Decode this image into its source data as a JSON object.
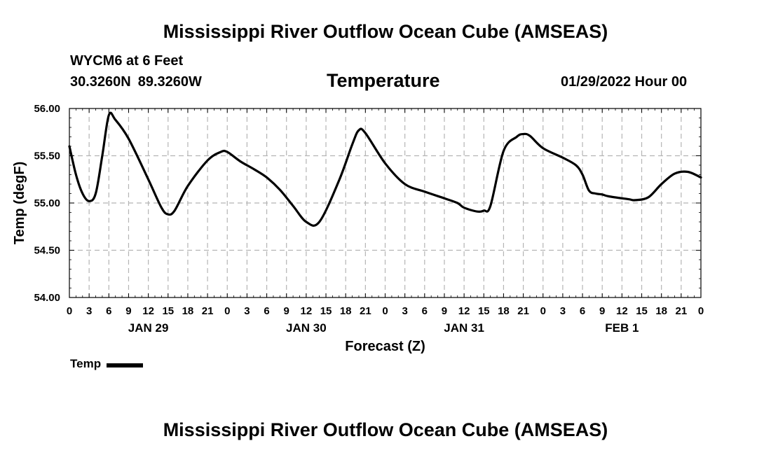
{
  "header": {
    "main_title": "Mississippi River Outflow Ocean Cube (AMSEAS)",
    "station": "WYCM6 at 6 Feet",
    "lat": "30.3260N",
    "lon": "89.3260W",
    "variable_title": "Temperature",
    "run_time": "01/29/2022 Hour 00"
  },
  "footer": {
    "title": "Mississippi River Outflow Ocean Cube (AMSEAS)"
  },
  "legend": {
    "label": "Temp"
  },
  "colors": {
    "line": "#000000",
    "grid": "#b4b4b4"
  },
  "chart_data": {
    "type": "line",
    "title": "Temperature",
    "xlabel": "Forecast (Z)",
    "ylabel": "Temp (degF)",
    "xlim": [
      0,
      96
    ],
    "ylim": [
      54.0,
      56.0
    ],
    "x_tick_step_hours": 3,
    "x_tick_labels": [
      "0",
      "3",
      "6",
      "9",
      "12",
      "15",
      "18",
      "21",
      "0",
      "3",
      "6",
      "9",
      "12",
      "15",
      "18",
      "21",
      "0",
      "3",
      "6",
      "9",
      "12",
      "15",
      "18",
      "21",
      "0",
      "3",
      "6",
      "9",
      "12",
      "15",
      "18",
      "21",
      "0"
    ],
    "y_ticks": [
      54.0,
      54.5,
      55.0,
      55.5,
      56.0
    ],
    "y_tick_labels": [
      "54.00",
      "54.50",
      "55.00",
      "55.50",
      "56.00"
    ],
    "date_labels": [
      {
        "text": "JAN 29",
        "hour": 12
      },
      {
        "text": "JAN 30",
        "hour": 36
      },
      {
        "text": "JAN 31",
        "hour": 60
      },
      {
        "text": "FEB 1",
        "hour": 84
      }
    ],
    "grid": true,
    "series": [
      {
        "name": "Temp",
        "x": [
          0,
          1,
          2,
          3,
          4,
          5,
          6,
          7,
          9,
          12,
          14,
          15,
          16,
          18,
          21,
          23,
          24,
          26,
          28,
          30,
          32,
          34,
          36,
          38,
          41,
          43,
          44,
          45,
          48,
          51,
          54,
          57,
          59,
          60,
          62,
          63,
          64,
          66,
          68,
          69,
          70,
          72,
          75,
          77,
          78,
          79,
          80,
          81,
          82,
          85,
          86,
          88,
          90,
          92,
          94,
          96
        ],
        "values": [
          55.6,
          55.3,
          55.1,
          55.02,
          55.1,
          55.5,
          55.93,
          55.88,
          55.68,
          55.25,
          54.95,
          54.88,
          54.92,
          55.18,
          55.45,
          55.54,
          55.54,
          55.44,
          55.36,
          55.27,
          55.14,
          54.97,
          54.8,
          54.8,
          55.24,
          55.62,
          55.77,
          55.74,
          55.42,
          55.2,
          55.12,
          55.05,
          55.0,
          54.95,
          54.91,
          54.92,
          54.97,
          55.55,
          55.7,
          55.73,
          55.71,
          55.58,
          55.48,
          55.4,
          55.3,
          55.13,
          55.1,
          55.09,
          55.07,
          55.04,
          55.03,
          55.06,
          55.2,
          55.31,
          55.33,
          55.27
        ]
      }
    ]
  }
}
